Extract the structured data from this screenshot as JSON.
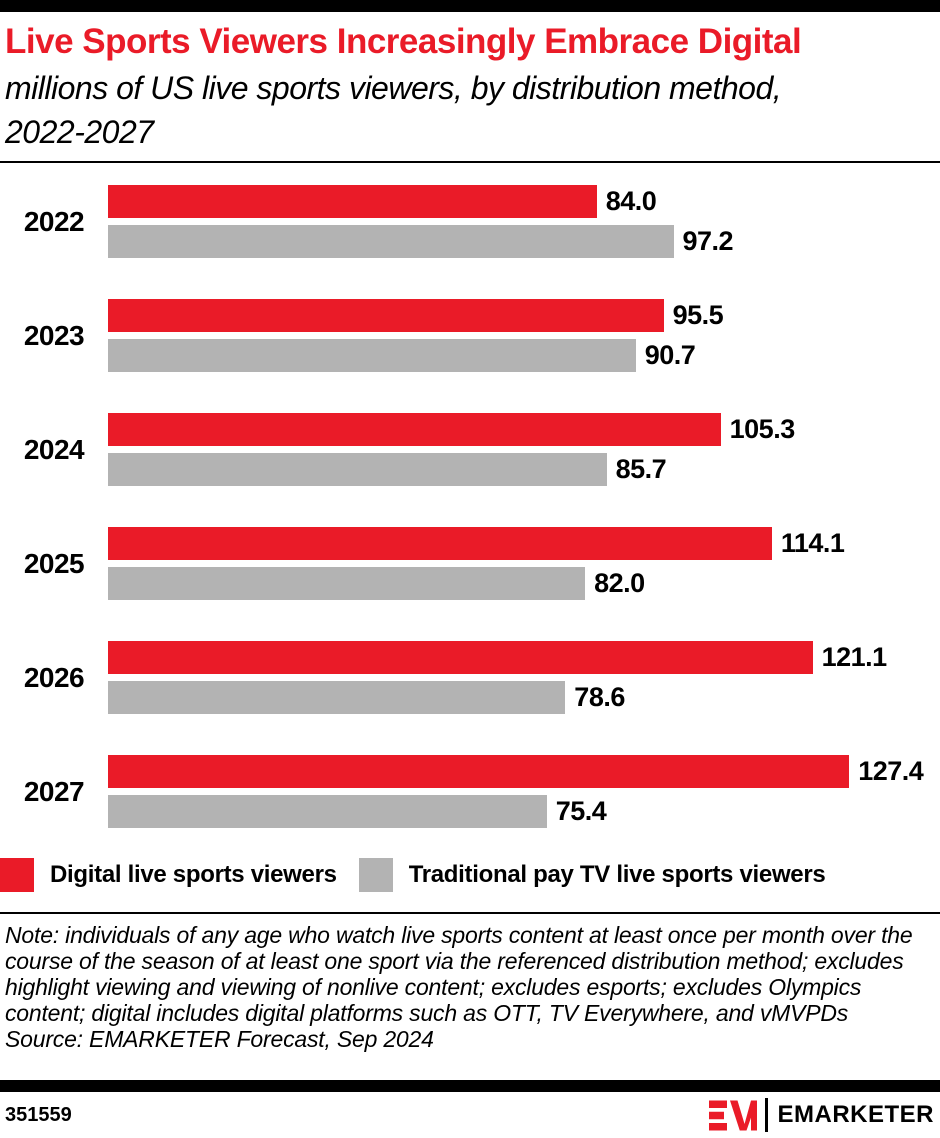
{
  "page": {
    "accent_red": "#EA1B28",
    "bar_gray": "#B3B3B3"
  },
  "header": {
    "title": "Live Sports Viewers Increasingly Embrace Digital",
    "subtitle": "millions of US live sports viewers, by distribution method, 2022-2027"
  },
  "chart_data": {
    "type": "bar",
    "orientation": "horizontal",
    "title": "Live Sports Viewers Increasingly Embrace Digital",
    "subtitle": "millions of US live sports viewers, by distribution method, 2022-2027",
    "xlabel": "",
    "ylabel": "",
    "grid": false,
    "legend_position": "bottom",
    "value_label_decimals": 1,
    "xlim": [
      0,
      143
    ],
    "categories": [
      "2022",
      "2023",
      "2024",
      "2025",
      "2026",
      "2027"
    ],
    "series": [
      {
        "name": "Digital live sports viewers",
        "color": "#EA1B28",
        "values": [
          84.0,
          95.5,
          105.3,
          114.1,
          121.1,
          127.4
        ]
      },
      {
        "name": "Traditional pay TV live sports viewers",
        "color": "#B3B3B3",
        "values": [
          97.2,
          90.7,
          85.7,
          82.0,
          78.6,
          75.4
        ]
      }
    ]
  },
  "footer": {
    "note": "Note: individuals of any age who watch live sports content at least once per month over the course of the season of at least one sport via the referenced distribution method; excludes highlight viewing and viewing of nonlive content; excludes esports; excludes Olympics content; digital includes digital platforms such as OTT, TV Everywhere, and vMVPDs",
    "source": "Source: EMARKETER Forecast, Sep 2024",
    "chart_id": "351559",
    "brand_name": "EMARKETER"
  }
}
